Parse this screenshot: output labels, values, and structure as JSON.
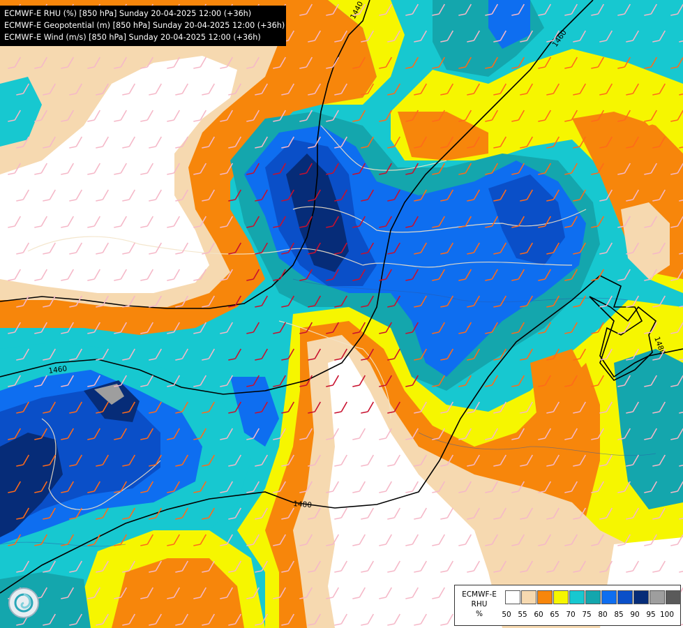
{
  "header": {
    "line1": "ECMWF-E RHU (%) [850 hPa] Sunday 20-04-2025 12:00 (+36h)",
    "line2": "ECMWF-E Geopotential (m) [850 hPa] Sunday 20-04-2025 12:00 (+36h)",
    "line3": "ECMWF-E Wind (m/s) [850 hPa] Sunday 20-04-2025 12:00 (+36h)"
  },
  "contours": {
    "label_1440": "1440",
    "label_1460_a": "1460",
    "label_1460_b": "1460",
    "label_1480_a": "1480",
    "label_1480_b": "1480"
  },
  "legend": {
    "title_line1": "ECMWF-E",
    "title_line2": "RHU",
    "title_line3": "%",
    "colors": [
      "#ffffff",
      "#f6d9b0",
      "#f7860b",
      "#f6f600",
      "#17c8d0",
      "#14a6ad",
      "#0e6ef0",
      "#0a4fc8",
      "#062c78",
      "#9e9e9e",
      "#5a5a5a"
    ],
    "ticks": [
      "50",
      "55",
      "60",
      "65",
      "70",
      "75",
      "80",
      "85",
      "90",
      "95",
      "100"
    ]
  },
  "logo": {
    "icon": "ecmwf-swirl-icon"
  }
}
